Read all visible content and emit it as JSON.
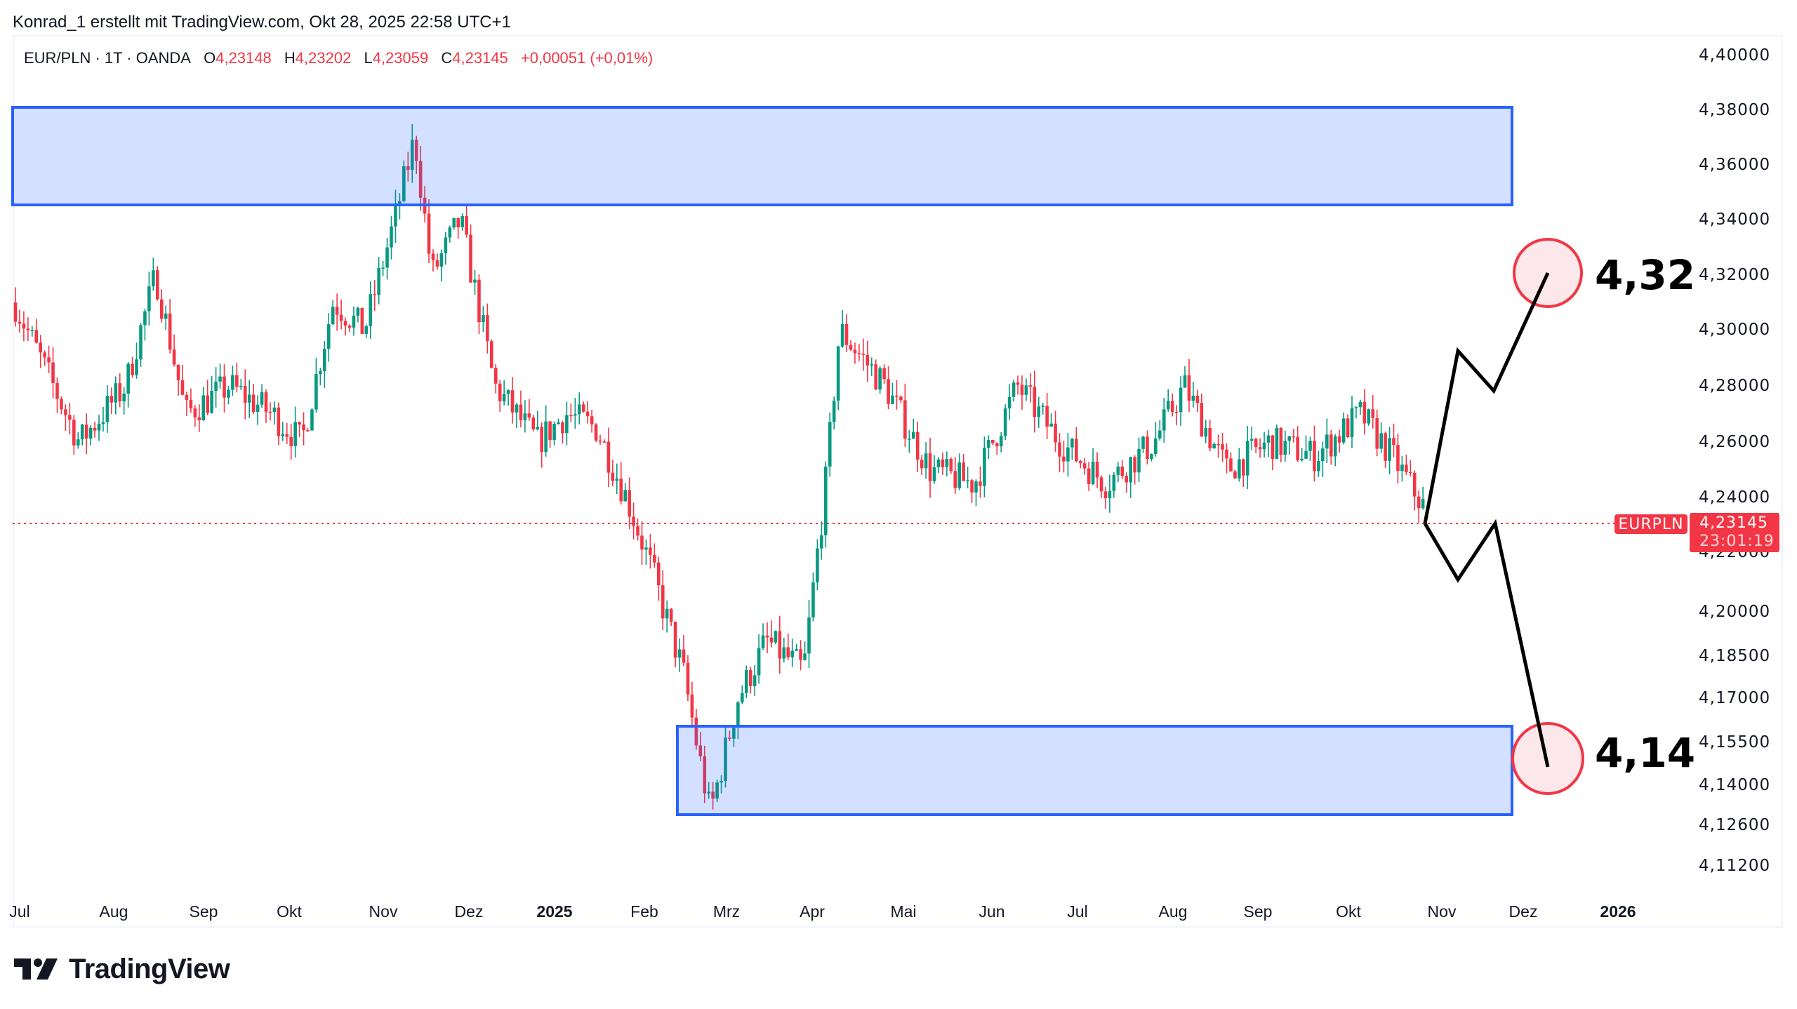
{
  "header": {
    "credit": "Konrad_1 erstellt mit TradingView.com, Okt 28, 2025 22:58 UTC+1"
  },
  "legend": {
    "symbol": "EUR/PLN · 1T · OANDA",
    "open_label": "O",
    "open": "4,23148",
    "high_label": "H",
    "high": "4,23202",
    "low_label": "L",
    "low": "4,23059",
    "close_label": "C",
    "close": "4,23145",
    "change": "+0,00051 (+0,01%)"
  },
  "price_tag": {
    "symbol": "EURPLN",
    "price": "4,23145",
    "countdown": "23:01:19"
  },
  "targets": {
    "upper": "4,32",
    "lower": "4,14"
  },
  "logo": {
    "text": "TradingView"
  },
  "colors": {
    "up": "#089981",
    "down": "#f23645",
    "zone_fill": "#d4defc",
    "zone_border": "#2962ff",
    "circle_border": "#f23645",
    "circle_fill": "#fce8ea"
  },
  "chart_data": {
    "type": "candlestick",
    "title": "EUR/PLN · 1T · OANDA",
    "xlabel": "",
    "ylabel": "",
    "ylim": [
      4.105,
      4.405
    ],
    "grid": false,
    "y_ticks": [
      "4,40000",
      "4,38000",
      "4,36000",
      "4,34000",
      "4,32000",
      "4,30000",
      "4,28000",
      "4,26000",
      "4,24000",
      "4,22000",
      "4,20000",
      "4,18500",
      "4,17000",
      "4,15500",
      "4,14000",
      "4,12600",
      "4,11200"
    ],
    "x_ticks": [
      {
        "label": "Jul",
        "bold": false
      },
      {
        "label": "Aug",
        "bold": false
      },
      {
        "label": "Sep",
        "bold": false
      },
      {
        "label": "Okt",
        "bold": false
      },
      {
        "label": "Nov",
        "bold": false
      },
      {
        "label": "Dez",
        "bold": false
      },
      {
        "label": "2025",
        "bold": true
      },
      {
        "label": "Feb",
        "bold": false
      },
      {
        "label": "Mrz",
        "bold": false
      },
      {
        "label": "Apr",
        "bold": false
      },
      {
        "label": "Mai",
        "bold": false
      },
      {
        "label": "Jun",
        "bold": false
      },
      {
        "label": "Jul",
        "bold": false
      },
      {
        "label": "Aug",
        "bold": false
      },
      {
        "label": "Sep",
        "bold": false
      },
      {
        "label": "Okt",
        "bold": false
      },
      {
        "label": "Nov",
        "bold": false
      },
      {
        "label": "Dez",
        "bold": false
      },
      {
        "label": "2026",
        "bold": true
      }
    ],
    "last_price": 4.23145,
    "approx_close_path": [
      {
        "date": "2024-07",
        "close": 4.31
      },
      {
        "date": "2024-07-20",
        "close": 4.26
      },
      {
        "date": "2024-08-05",
        "close": 4.28
      },
      {
        "date": "2024-08-15",
        "close": 4.32
      },
      {
        "date": "2024-08-25",
        "close": 4.27
      },
      {
        "date": "2024-09-10",
        "close": 4.28
      },
      {
        "date": "2024-09-25",
        "close": 4.27
      },
      {
        "date": "2024-10-05",
        "close": 4.26
      },
      {
        "date": "2024-10-15",
        "close": 4.31
      },
      {
        "date": "2024-10-25",
        "close": 4.3
      },
      {
        "date": "2024-11-05",
        "close": 4.34
      },
      {
        "date": "2024-11-12",
        "close": 4.37
      },
      {
        "date": "2024-11-18",
        "close": 4.32
      },
      {
        "date": "2024-11-28",
        "close": 4.34
      },
      {
        "date": "2024-12-10",
        "close": 4.28
      },
      {
        "date": "2024-12-25",
        "close": 4.26
      },
      {
        "date": "2025-01-05",
        "close": 4.27
      },
      {
        "date": "2025-01-15",
        "close": 4.265
      },
      {
        "date": "2025-01-25",
        "close": 4.24
      },
      {
        "date": "2025-02-05",
        "close": 4.21
      },
      {
        "date": "2025-02-15",
        "close": 4.18
      },
      {
        "date": "2025-02-25",
        "close": 4.13
      },
      {
        "date": "2025-03-05",
        "close": 4.17
      },
      {
        "date": "2025-03-15",
        "close": 4.19
      },
      {
        "date": "2025-03-28",
        "close": 4.18
      },
      {
        "date": "2025-04-05",
        "close": 4.24
      },
      {
        "date": "2025-04-10",
        "close": 4.3
      },
      {
        "date": "2025-04-25",
        "close": 4.28
      },
      {
        "date": "2025-05-10",
        "close": 4.25
      },
      {
        "date": "2025-05-25",
        "close": 4.245
      },
      {
        "date": "2025-06-10",
        "close": 4.28
      },
      {
        "date": "2025-06-25",
        "close": 4.26
      },
      {
        "date": "2025-07-10",
        "close": 4.245
      },
      {
        "date": "2025-07-25",
        "close": 4.26
      },
      {
        "date": "2025-08-05",
        "close": 4.28
      },
      {
        "date": "2025-08-20",
        "close": 4.25
      },
      {
        "date": "2025-09-05",
        "close": 4.26
      },
      {
        "date": "2025-09-20",
        "close": 4.255
      },
      {
        "date": "2025-10-05",
        "close": 4.27
      },
      {
        "date": "2025-10-15",
        "close": 4.255
      },
      {
        "date": "2025-10-28",
        "close": 4.2315
      }
    ],
    "annotations": [
      {
        "type": "rectangle",
        "label": "supply zone",
        "y_range": [
          4.345,
          4.381
        ],
        "x_range": [
          "2024-07",
          "2025-12-08"
        ]
      },
      {
        "type": "rectangle",
        "label": "demand zone",
        "y_range": [
          4.127,
          4.158
        ],
        "x_range": [
          "2025-02-12",
          "2025-12-08"
        ]
      },
      {
        "type": "path",
        "label": "bullish scenario",
        "points": [
          4.2315,
          4.293,
          4.279,
          4.32
        ]
      },
      {
        "type": "path",
        "label": "bearish scenario",
        "points": [
          4.2315,
          4.211,
          4.2315,
          4.145
        ]
      },
      {
        "type": "circle",
        "label": "4,32",
        "value": 4.32
      },
      {
        "type": "circle",
        "label": "4,14",
        "value": 4.14
      }
    ]
  }
}
